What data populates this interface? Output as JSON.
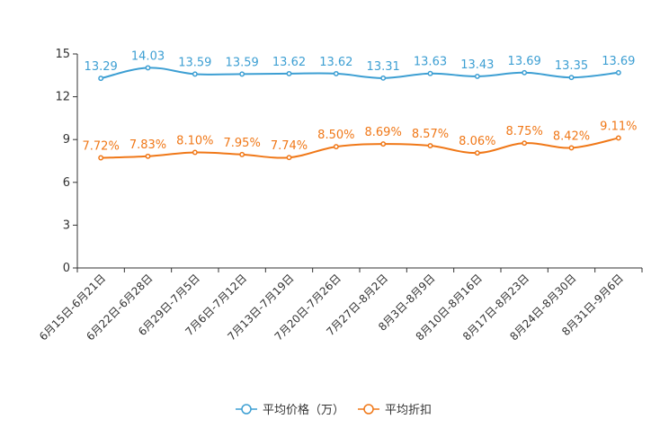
{
  "chart_data": {
    "type": "line",
    "title": "",
    "xlabel": "",
    "ylabel": "",
    "ylim": [
      0,
      15
    ],
    "yticks": [
      0,
      3,
      6,
      9,
      12,
      15
    ],
    "grid": false,
    "legend_position": "bottom-center",
    "categories": [
      "6月15日-6月21日",
      "6月22日-6月28日",
      "6月29日-7月5日",
      "7月6日-7月12日",
      "7月13日-7月19日",
      "7月20日-7月26日",
      "7月27日-8月2日",
      "8月3日-8月9日",
      "8月10日-8月16日",
      "8月17日-8月23日",
      "8月24日-8月30日",
      "8月31日-9月6日"
    ],
    "series": [
      {
        "name": "平均价格（万）",
        "color": "#3d9fd3",
        "values": [
          13.29,
          14.03,
          13.59,
          13.59,
          13.62,
          13.62,
          13.31,
          13.63,
          13.43,
          13.69,
          13.35,
          13.69
        ],
        "labels": [
          "13.29",
          "14.03",
          "13.59",
          "13.59",
          "13.62",
          "13.62",
          "13.31",
          "13.63",
          "13.43",
          "13.69",
          "13.35",
          "13.69"
        ]
      },
      {
        "name": "平均折扣",
        "color": "#f07818",
        "values": [
          7.72,
          7.83,
          8.1,
          7.95,
          7.74,
          8.5,
          8.69,
          8.57,
          8.06,
          8.75,
          8.42,
          9.11
        ],
        "labels": [
          "7.72%",
          "7.83%",
          "8.10%",
          "7.95%",
          "7.74%",
          "8.50%",
          "8.69%",
          "8.57%",
          "8.06%",
          "8.75%",
          "8.42%",
          "9.11%"
        ]
      }
    ]
  }
}
